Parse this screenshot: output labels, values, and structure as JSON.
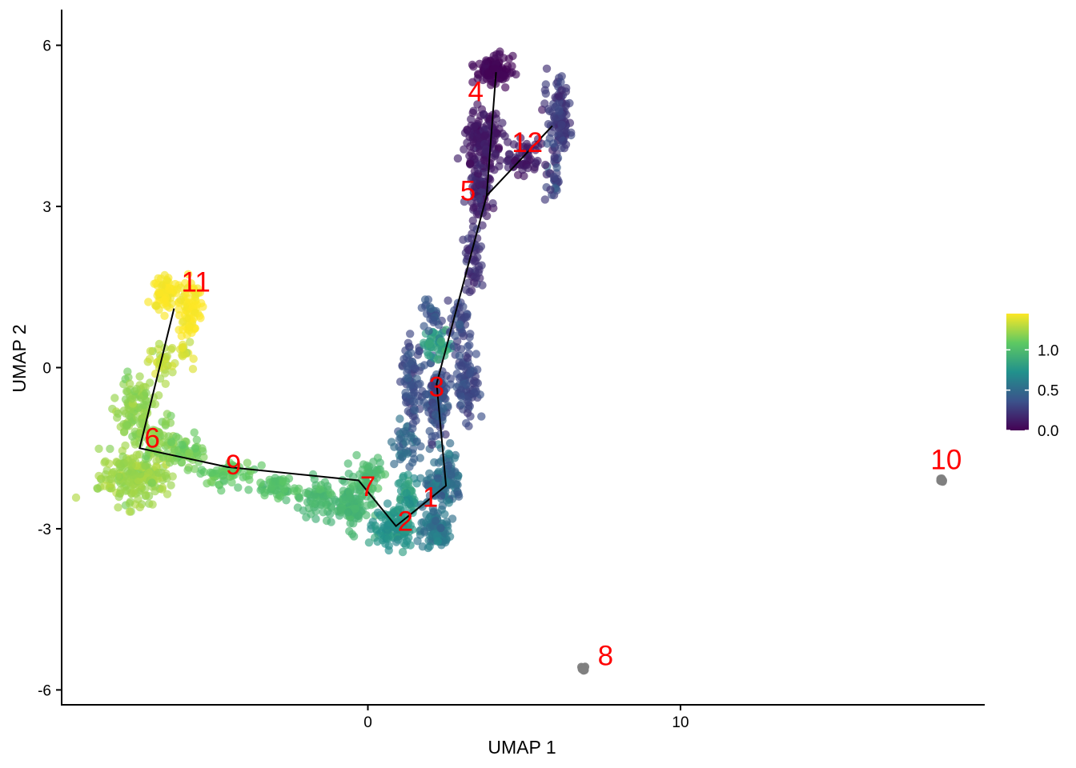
{
  "chart_data": {
    "type": "scatter",
    "title": "",
    "xlabel": "UMAP 1",
    "ylabel": "UMAP 2",
    "xlim": [
      -9.8,
      19.7
    ],
    "ylim": [
      -6.2,
      6.25
    ],
    "x_ticks": [
      {
        "value": 0,
        "label": "0"
      },
      {
        "value": 10,
        "label": "10"
      }
    ],
    "y_ticks": [
      {
        "value": 6,
        "label": "6"
      },
      {
        "value": 3,
        "label": "3"
      },
      {
        "value": 0,
        "label": "0"
      },
      {
        "value": -3,
        "label": "-3"
      },
      {
        "value": -6,
        "label": "-6"
      }
    ],
    "grid": false,
    "colormap": "viridis",
    "color_range": [
      0.0,
      1.45
    ],
    "missing_color": "#7f7f7f",
    "legend": {
      "placement": "right",
      "ticks": [
        {
          "value": 1.0,
          "label": "1.0"
        },
        {
          "value": 0.5,
          "label": "0.5"
        },
        {
          "value": 0.0,
          "label": "0.0"
        }
      ]
    },
    "cluster_centers": [
      {
        "label": "1",
        "x": 2.0,
        "y": -2.45,
        "value": 0.55
      },
      {
        "label": "2",
        "x": 1.2,
        "y": -2.9,
        "value": 0.7
      },
      {
        "label": "3",
        "x": 2.2,
        "y": -0.4,
        "value": 0.35
      },
      {
        "label": "4",
        "x": 3.6,
        "y": 5.4,
        "value": 0.05
      },
      {
        "label": "5",
        "x": 3.4,
        "y": 3.6,
        "value": 0.15
      },
      {
        "label": "6",
        "x": -7.2,
        "y": -1.7,
        "value": 1.2
      },
      {
        "label": "7",
        "x": -0.4,
        "y": -2.3,
        "value": 0.95
      },
      {
        "label": "8",
        "x": 7.0,
        "y": -5.6,
        "value": null
      },
      {
        "label": "9",
        "x": -4.5,
        "y": -1.9,
        "value": 1.1
      },
      {
        "label": "10",
        "x": 18.3,
        "y": -2.1,
        "value": null
      },
      {
        "label": "11",
        "x": -6.1,
        "y": 1.3,
        "value": 1.42
      },
      {
        "label": "12",
        "x": 5.2,
        "y": 4.2,
        "value": 0.22
      }
    ],
    "clusters": [
      {
        "label": "1",
        "x": 2.3,
        "y": -2.2,
        "value": 0.55,
        "text_x": 2.0,
        "text_y": -2.45
      },
      {
        "label": "2",
        "x": 0.9,
        "y": -2.95,
        "value": 0.7,
        "text_x": 1.2,
        "text_y": -2.9
      },
      {
        "label": "3",
        "x": 2.2,
        "y": -0.3,
        "value": 0.35,
        "text_x": 2.2,
        "text_y": -0.4
      },
      {
        "label": "4",
        "x": 4.1,
        "y": 5.5,
        "value": 0.05,
        "text_x": 3.45,
        "text_y": 5.1
      },
      {
        "label": "5",
        "x": 3.8,
        "y": 3.2,
        "value": 0.15,
        "text_x": 3.2,
        "text_y": 3.25
      },
      {
        "label": "6",
        "x": -7.3,
        "y": -1.5,
        "value": 1.2,
        "text_x": -6.9,
        "text_y": -1.35
      },
      {
        "label": "7",
        "x": -0.3,
        "y": -2.1,
        "value": 0.95,
        "text_x": 0.0,
        "text_y": -2.25
      },
      {
        "label": "8",
        "x": 7.0,
        "y": -5.6,
        "value": null,
        "text_x": 7.6,
        "text_y": -5.4
      },
      {
        "label": "9",
        "x": -4.5,
        "y": -1.85,
        "value": 1.1,
        "text_x": -4.3,
        "text_y": -1.85
      },
      {
        "label": "10",
        "x": 18.35,
        "y": -2.1,
        "value": null,
        "text_x": 18.5,
        "text_y": -1.75
      },
      {
        "label": "11",
        "x": -6.2,
        "y": 1.1,
        "value": 1.42,
        "text_x": -5.5,
        "text_y": 1.55
      },
      {
        "label": "12",
        "x": 5.9,
        "y": 4.5,
        "value": 0.22,
        "text_x": 5.1,
        "text_y": 4.15
      }
    ],
    "trajectory": [
      [
        [
          -6.2,
          1.1
        ],
        [
          -7.3,
          -1.5
        ],
        [
          -4.5,
          -1.85
        ],
        [
          -0.3,
          -2.1
        ],
        [
          0.9,
          -2.95
        ],
        [
          2.5,
          -2.2
        ],
        [
          2.2,
          -0.3
        ],
        [
          3.8,
          3.2
        ],
        [
          4.1,
          5.5
        ]
      ],
      [
        [
          3.8,
          3.2
        ],
        [
          5.9,
          4.5
        ]
      ]
    ],
    "point_groups": [
      {
        "x": -7.4,
        "y": -2.05,
        "sx": 0.95,
        "sy": 0.4,
        "n": 200,
        "value": 1.23,
        "vsd": 0.03
      },
      {
        "x": -7.5,
        "y": -0.75,
        "sx": 0.55,
        "sy": 0.5,
        "n": 110,
        "value": 1.2,
        "vsd": 0.03
      },
      {
        "x": -6.7,
        "y": -1.3,
        "sx": 0.6,
        "sy": 0.35,
        "n": 60,
        "value": 1.17,
        "vsd": 0.03
      },
      {
        "x": -6.6,
        "y": 0.1,
        "sx": 0.35,
        "sy": 0.3,
        "n": 35,
        "value": 1.3,
        "vsd": 0.04
      },
      {
        "x": -6.5,
        "y": 1.4,
        "sx": 0.35,
        "sy": 0.25,
        "n": 70,
        "value": 1.44,
        "vsd": 0.02
      },
      {
        "x": -5.7,
        "y": 1.1,
        "sx": 0.3,
        "sy": 0.45,
        "n": 80,
        "value": 1.44,
        "vsd": 0.02
      },
      {
        "x": -5.9,
        "y": 0.3,
        "sx": 0.25,
        "sy": 0.25,
        "n": 15,
        "value": 1.35,
        "vsd": 0.05
      },
      {
        "x": -5.8,
        "y": -1.55,
        "sx": 0.5,
        "sy": 0.25,
        "n": 45,
        "value": 1.13,
        "vsd": 0.03
      },
      {
        "x": -4.5,
        "y": -1.95,
        "sx": 0.7,
        "sy": 0.18,
        "n": 60,
        "value": 1.08,
        "vsd": 0.03
      },
      {
        "x": -2.8,
        "y": -2.25,
        "sx": 0.6,
        "sy": 0.18,
        "n": 55,
        "value": 1.03,
        "vsd": 0.03
      },
      {
        "x": -1.6,
        "y": -2.45,
        "sx": 0.45,
        "sy": 0.28,
        "n": 60,
        "value": 0.98,
        "vsd": 0.03
      },
      {
        "x": -0.5,
        "y": -2.6,
        "sx": 0.45,
        "sy": 0.35,
        "n": 110,
        "value": 0.95,
        "vsd": 0.03
      },
      {
        "x": 0.0,
        "y": -2.0,
        "sx": 0.35,
        "sy": 0.28,
        "n": 50,
        "value": 0.98,
        "vsd": 0.03
      },
      {
        "x": 0.8,
        "y": -3.0,
        "sx": 0.5,
        "sy": 0.28,
        "n": 120,
        "value": 0.73,
        "vsd": 0.05
      },
      {
        "x": 1.3,
        "y": -2.4,
        "sx": 0.3,
        "sy": 0.3,
        "n": 50,
        "value": 0.78,
        "vsd": 0.05
      },
      {
        "x": 2.2,
        "y": -3.0,
        "sx": 0.4,
        "sy": 0.35,
        "n": 90,
        "value": 0.58,
        "vsd": 0.05
      },
      {
        "x": 2.4,
        "y": -2.1,
        "sx": 0.5,
        "sy": 0.45,
        "n": 120,
        "value": 0.52,
        "vsd": 0.06
      },
      {
        "x": 1.2,
        "y": -1.45,
        "sx": 0.3,
        "sy": 0.35,
        "n": 40,
        "value": 0.5,
        "vsd": 0.08
      },
      {
        "x": 1.4,
        "y": -0.3,
        "sx": 0.3,
        "sy": 0.55,
        "n": 80,
        "value": 0.33,
        "vsd": 0.06
      },
      {
        "x": 2.2,
        "y": -0.6,
        "sx": 0.3,
        "sy": 0.65,
        "n": 110,
        "value": 0.35,
        "vsd": 0.07
      },
      {
        "x": 3.2,
        "y": -0.3,
        "sx": 0.3,
        "sy": 0.6,
        "n": 90,
        "value": 0.32,
        "vsd": 0.05
      },
      {
        "x": 2.2,
        "y": 0.45,
        "sx": 0.35,
        "sy": 0.25,
        "n": 50,
        "value": 0.82,
        "vsd": 0.07
      },
      {
        "x": 2.0,
        "y": 1.0,
        "sx": 0.25,
        "sy": 0.18,
        "n": 25,
        "value": 0.38,
        "vsd": 0.04
      },
      {
        "x": 2.9,
        "y": 0.9,
        "sx": 0.3,
        "sy": 0.35,
        "n": 35,
        "value": 0.3,
        "vsd": 0.05
      },
      {
        "x": 3.4,
        "y": 2.0,
        "sx": 0.25,
        "sy": 0.5,
        "n": 50,
        "value": 0.2,
        "vsd": 0.04
      },
      {
        "x": 3.6,
        "y": 3.3,
        "sx": 0.3,
        "sy": 0.4,
        "n": 80,
        "value": 0.15,
        "vsd": 0.04
      },
      {
        "x": 3.7,
        "y": 4.2,
        "sx": 0.5,
        "sy": 0.45,
        "n": 150,
        "value": 0.1,
        "vsd": 0.03
      },
      {
        "x": 4.0,
        "y": 5.55,
        "sx": 0.45,
        "sy": 0.2,
        "n": 110,
        "value": 0.02,
        "vsd": 0.02
      },
      {
        "x": 5.0,
        "y": 3.9,
        "sx": 0.5,
        "sy": 0.35,
        "n": 60,
        "value": 0.12,
        "vsd": 0.04
      },
      {
        "x": 6.1,
        "y": 4.6,
        "sx": 0.3,
        "sy": 0.7,
        "n": 110,
        "value": 0.25,
        "vsd": 0.05
      },
      {
        "x": 5.9,
        "y": 3.5,
        "sx": 0.2,
        "sy": 0.35,
        "n": 25,
        "value": 0.3,
        "vsd": 0.1
      },
      {
        "x": 6.9,
        "y": -5.6,
        "sx": 0.05,
        "sy": 0.04,
        "n": 14,
        "value": null,
        "vsd": 0
      },
      {
        "x": 18.35,
        "y": -2.1,
        "sx": 0.05,
        "sy": 0.03,
        "n": 10,
        "value": null,
        "vsd": 0
      }
    ]
  }
}
